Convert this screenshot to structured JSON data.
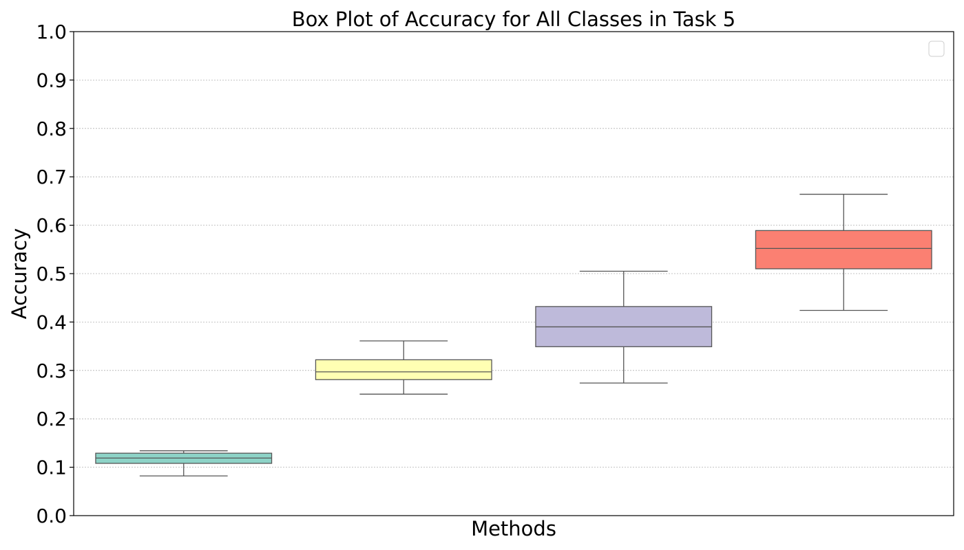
{
  "chart_data": {
    "type": "box",
    "title": "Box Plot of Accuracy for All Classes in Task 5",
    "xlabel": "Methods",
    "ylabel": "Accuracy",
    "ylim": [
      0.0,
      1.0
    ],
    "yticks": [
      "0.0",
      "0.1",
      "0.2",
      "0.3",
      "0.4",
      "0.5",
      "0.6",
      "0.7",
      "0.8",
      "0.9",
      "1.0"
    ],
    "grid": "y",
    "legend": {
      "placement": "upper-right",
      "entries": []
    },
    "boxes": [
      {
        "whisker_low": 0.082,
        "q1": 0.108,
        "median": 0.119,
        "q3": 0.129,
        "whisker_high": 0.134,
        "color": "#8dd3c7"
      },
      {
        "whisker_low": 0.251,
        "q1": 0.281,
        "median": 0.297,
        "q3": 0.322,
        "whisker_high": 0.361,
        "color": "#ffffb3"
      },
      {
        "whisker_low": 0.274,
        "q1": 0.349,
        "median": 0.39,
        "q3": 0.432,
        "whisker_high": 0.505,
        "color": "#bebada"
      },
      {
        "whisker_low": 0.424,
        "q1": 0.51,
        "median": 0.552,
        "q3": 0.589,
        "whisker_high": 0.664,
        "color": "#fb8072"
      }
    ]
  }
}
